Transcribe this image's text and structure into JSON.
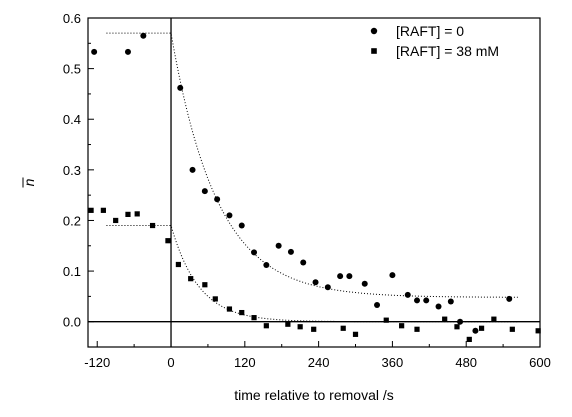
{
  "chart_data": {
    "type": "scatter",
    "xlabel": "time relative to removal /s",
    "ylabel": "n",
    "ylabel_style": "n with overbar (italic)",
    "xlim": [
      -135,
      600
    ],
    "ylim": [
      -0.05,
      0.6
    ],
    "xticks": [
      -120,
      0,
      120,
      240,
      360,
      480,
      600
    ],
    "yticks": [
      0.0,
      0.1,
      0.2,
      0.3,
      0.4,
      0.5,
      0.6
    ],
    "xtick_labels": [
      "-120",
      "0",
      "120",
      "240",
      "360",
      "480",
      "600"
    ],
    "ytick_labels": [
      "0.0",
      "0.1",
      "0.2",
      "0.3",
      "0.4",
      "0.5",
      "0.6"
    ],
    "reference_lines": {
      "vertical_x": 0,
      "horizontal_y": 0
    },
    "legend_position": "top-right",
    "series": [
      {
        "name": "[RAFT] = 0",
        "marker": "circle",
        "color": "#000000",
        "x": [
          -125,
          -70,
          -45,
          15,
          35,
          55,
          75,
          95,
          115,
          135,
          155,
          175,
          195,
          215,
          235,
          255,
          275,
          290,
          315,
          335,
          360,
          385,
          400,
          415,
          435,
          455,
          470,
          495,
          550
        ],
        "y": [
          0.533,
          0.533,
          0.565,
          0.462,
          0.3,
          0.258,
          0.242,
          0.21,
          0.19,
          0.137,
          0.112,
          0.15,
          0.138,
          0.117,
          0.078,
          0.068,
          0.09,
          0.09,
          0.075,
          0.033,
          0.092,
          0.053,
          0.042,
          0.042,
          0.03,
          0.04,
          0.0,
          -0.018,
          0.045
        ],
        "fit": {
          "pre_level": 0.57,
          "x_start": -105,
          "x_end": 565,
          "decay_to": 0.048,
          "tau_s": 75
        }
      },
      {
        "name": "[RAFT] = 38 mM",
        "marker": "square",
        "color": "#000000",
        "x": [
          -130,
          -110,
          -90,
          -70,
          -55,
          -30,
          -5,
          12,
          32,
          55,
          72,
          95,
          115,
          135,
          155,
          190,
          210,
          232,
          280,
          300,
          350,
          375,
          400,
          445,
          465,
          485,
          505,
          525,
          555,
          597
        ],
        "y": [
          0.22,
          0.22,
          0.2,
          0.212,
          0.213,
          0.19,
          0.16,
          0.113,
          0.085,
          0.073,
          0.045,
          0.025,
          0.018,
          0.008,
          -0.008,
          -0.005,
          -0.01,
          -0.015,
          -0.013,
          -0.025,
          0.003,
          -0.008,
          -0.015,
          0.005,
          -0.01,
          -0.035,
          -0.013,
          0.005,
          -0.015,
          -0.018
        ],
        "fit": {
          "pre_level": 0.19,
          "x_start": -105,
          "x_end": 565,
          "decay_to": 0.0,
          "tau_s": 45
        }
      }
    ]
  }
}
